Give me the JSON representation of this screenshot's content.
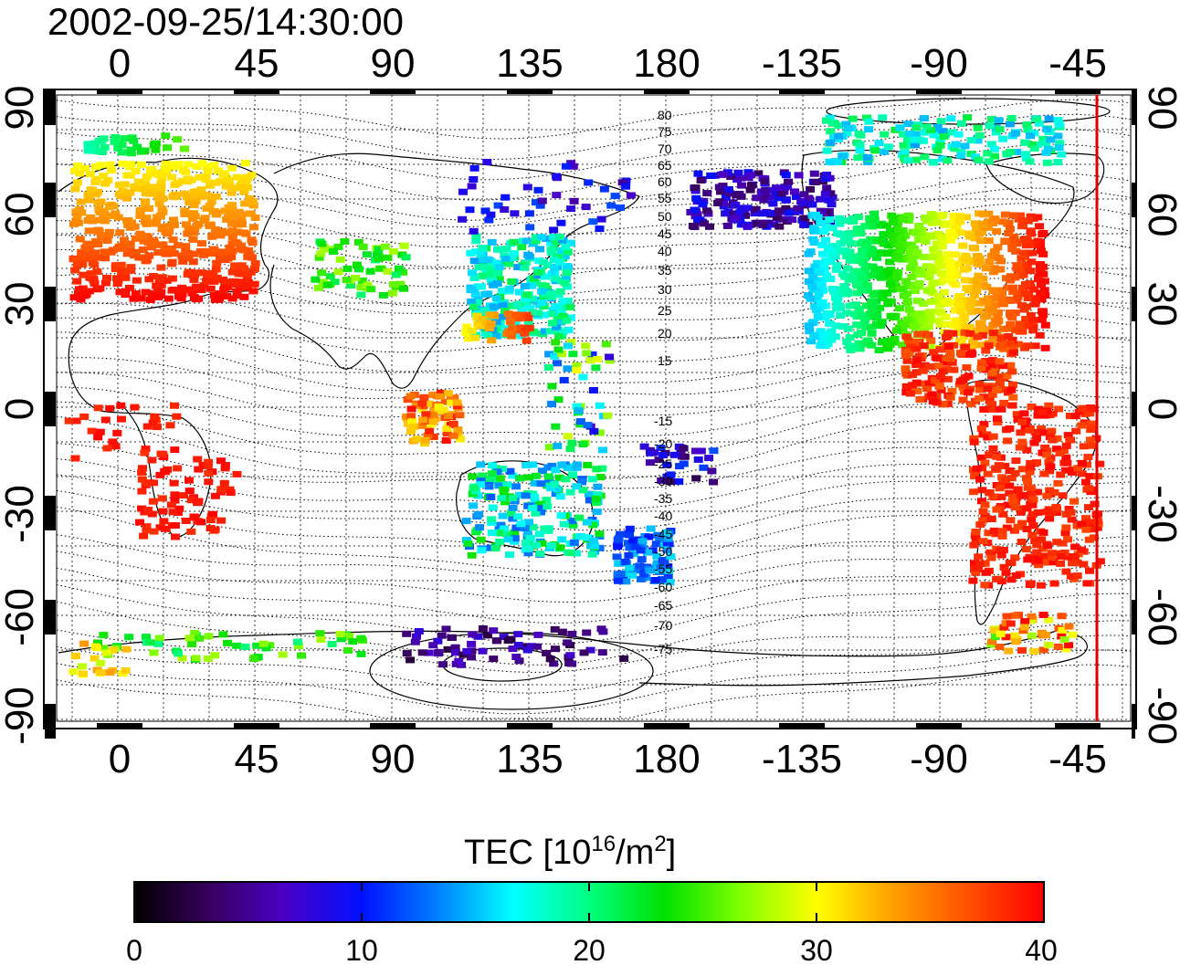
{
  "title": "2002-09-25/14:30:00",
  "map": {
    "lon_ticks_top": [
      "0",
      "45",
      "90",
      "135",
      "180",
      "-135",
      "-90",
      "-45"
    ],
    "lon_ticks_bottom": [
      "0",
      "45",
      "90",
      "135",
      "180",
      "-135",
      "-90",
      "-45"
    ],
    "lat_ticks_left": [
      "90",
      "60",
      "30",
      "0",
      "-30",
      "-60",
      "-90"
    ],
    "lat_ticks_right": [
      "90",
      "60",
      "30",
      "0",
      "-30",
      "-60",
      "-90"
    ],
    "magnetic_lat_labels": [
      "80",
      "75",
      "70",
      "65",
      "60",
      "55",
      "50",
      "45",
      "40",
      "35",
      "30",
      "25",
      "20",
      "15",
      "-15",
      "-20",
      "-25",
      "-30",
      "-35",
      "-40",
      "-45",
      "-50",
      "-55",
      "-60",
      "-65",
      "-70",
      "-75"
    ],
    "terminator_color": "#e00000",
    "grid": "dotted"
  },
  "colorbar": {
    "label_prefix": "TEC  [10",
    "label_exp1": "16",
    "label_mid": "/m",
    "label_exp2": "2",
    "label_suffix": "]",
    "ticks": [
      "0",
      "10",
      "20",
      "30",
      "40"
    ],
    "range": [
      0,
      40
    ],
    "colormap": [
      "#000000",
      "#3a0060",
      "#4a00c8",
      "#0010ff",
      "#0080ff",
      "#00ffff",
      "#00ff80",
      "#00e000",
      "#80ff00",
      "#ffff00",
      "#ffa000",
      "#ff5000",
      "#ff0000"
    ]
  }
}
